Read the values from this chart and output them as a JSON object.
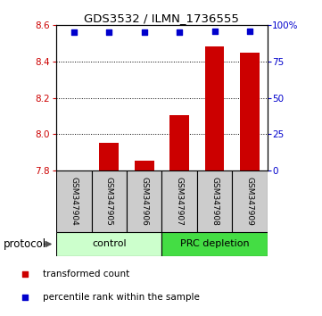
{
  "title": "GDS3532 / ILMN_1736555",
  "samples": [
    "GSM347904",
    "GSM347905",
    "GSM347906",
    "GSM347907",
    "GSM347908",
    "GSM347909"
  ],
  "bar_values": [
    7.802,
    7.953,
    7.855,
    8.105,
    8.482,
    8.447
  ],
  "bar_baseline": 7.8,
  "percentile_values": [
    95,
    95,
    95,
    95,
    96,
    96
  ],
  "bar_color": "#cc0000",
  "dot_color": "#0000cc",
  "ylim_left": [
    7.8,
    8.6
  ],
  "ylim_right": [
    0,
    100
  ],
  "yticks_left": [
    7.8,
    8.0,
    8.2,
    8.4,
    8.6
  ],
  "yticks_right": [
    0,
    25,
    50,
    75,
    100
  ],
  "ytick_labels_right": [
    "0",
    "25",
    "50",
    "75",
    "100%"
  ],
  "groups": [
    {
      "label": "control",
      "indices": [
        0,
        1,
        2
      ],
      "color": "#ccffcc"
    },
    {
      "label": "PRC depletion",
      "indices": [
        3,
        4,
        5
      ],
      "color": "#44dd44"
    }
  ],
  "group_label": "protocol",
  "legend_bar_label": "transformed count",
  "legend_dot_label": "percentile rank within the sample",
  "tick_bg_color": "#cccccc",
  "bar_width": 0.55
}
